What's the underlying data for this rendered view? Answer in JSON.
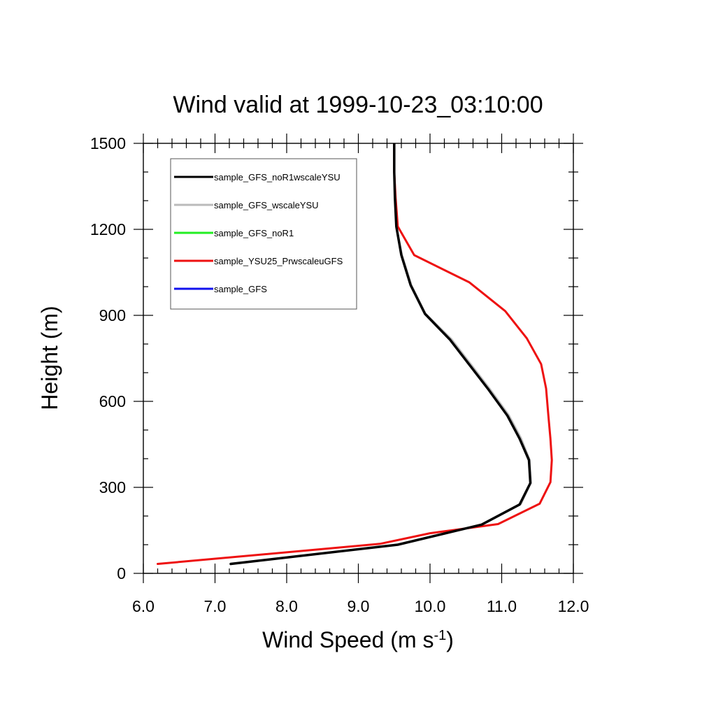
{
  "chart_data": {
    "type": "line",
    "title": "Wind valid at 1999-10-23_03:10:00",
    "xlabel": "Wind Speed (m s",
    "xlabel_superscript": "-1",
    "xlabel_suffix": ")",
    "ylabel": "Height (m)",
    "xlim": [
      6.0,
      12.0
    ],
    "ylim": [
      0,
      1500
    ],
    "x_ticks": [
      6.0,
      7.0,
      8.0,
      9.0,
      10.0,
      11.0,
      12.0
    ],
    "x_tick_labels": [
      "6.0",
      "7.0",
      "8.0",
      "9.0",
      "10.0",
      "11.0",
      "12.0"
    ],
    "y_ticks": [
      0,
      300,
      600,
      900,
      1200,
      1500
    ],
    "y_tick_labels": [
      "0",
      "300",
      "600",
      "900",
      "1200",
      "1500"
    ],
    "grid": false,
    "legend_position": "top-left",
    "series": [
      {
        "name": "sample_GFS_noR1wscaleYSU",
        "color": "#000000",
        "width": 3.5,
        "points": [
          [
            7.22,
            33
          ],
          [
            9.55,
            100
          ],
          [
            10.72,
            170
          ],
          [
            11.25,
            240
          ],
          [
            11.4,
            315
          ],
          [
            11.38,
            395
          ],
          [
            11.25,
            470
          ],
          [
            11.08,
            550
          ],
          [
            10.82,
            640
          ],
          [
            10.28,
            815
          ],
          [
            9.93,
            905
          ],
          [
            9.73,
            1005
          ],
          [
            9.6,
            1110
          ],
          [
            9.53,
            1210
          ],
          [
            9.51,
            1310
          ],
          [
            9.5,
            1400
          ],
          [
            9.5,
            1500
          ]
        ]
      },
      {
        "name": "sample_GFS_wscaleYSU",
        "color": "#bbbbbb",
        "width": 2.5,
        "points": [
          [
            7.22,
            33
          ],
          [
            9.55,
            100
          ],
          [
            10.74,
            172
          ],
          [
            11.27,
            242
          ],
          [
            11.41,
            317
          ],
          [
            11.39,
            397
          ],
          [
            11.27,
            472
          ],
          [
            11.1,
            552
          ],
          [
            10.84,
            642
          ],
          [
            10.3,
            817
          ],
          [
            9.94,
            906
          ],
          [
            9.74,
            1006
          ],
          [
            9.61,
            1111
          ],
          [
            9.53,
            1210
          ],
          [
            9.51,
            1310
          ],
          [
            9.5,
            1400
          ],
          [
            9.5,
            1500
          ]
        ]
      },
      {
        "name": "sample_GFS_noR1",
        "color": "#22ee22",
        "width": 2.5,
        "points": [
          [
            7.22,
            33
          ],
          [
            9.55,
            100
          ],
          [
            10.73,
            171
          ],
          [
            11.26,
            241
          ],
          [
            11.4,
            316
          ],
          [
            11.38,
            396
          ],
          [
            11.26,
            471
          ],
          [
            11.09,
            551
          ],
          [
            10.83,
            641
          ],
          [
            10.29,
            816
          ],
          [
            9.93,
            905
          ],
          [
            9.73,
            1005
          ],
          [
            9.6,
            1110
          ],
          [
            9.53,
            1210
          ],
          [
            9.51,
            1310
          ],
          [
            9.5,
            1400
          ],
          [
            9.5,
            1500
          ]
        ]
      },
      {
        "name": "sample_YSU25_PrwscaleuGFS",
        "color": "#ee1111",
        "width": 3,
        "points": [
          [
            6.2,
            33
          ],
          [
            9.3,
            103
          ],
          [
            10.0,
            140
          ],
          [
            10.3,
            150
          ],
          [
            10.95,
            172
          ],
          [
            11.53,
            243
          ],
          [
            11.68,
            318
          ],
          [
            11.7,
            395
          ],
          [
            11.68,
            470
          ],
          [
            11.65,
            555
          ],
          [
            11.62,
            645
          ],
          [
            11.55,
            730
          ],
          [
            11.35,
            820
          ],
          [
            11.05,
            915
          ],
          [
            10.55,
            1015
          ],
          [
            9.78,
            1110
          ],
          [
            9.55,
            1210
          ],
          [
            9.52,
            1310
          ],
          [
            9.5,
            1400
          ],
          [
            9.5,
            1500
          ]
        ]
      },
      {
        "name": "sample_GFS",
        "color": "#1111ee",
        "width": 2,
        "points": [
          [
            7.22,
            33
          ],
          [
            9.55,
            100
          ],
          [
            10.73,
            171
          ],
          [
            11.26,
            241
          ],
          [
            11.41,
            316
          ],
          [
            11.39,
            396
          ],
          [
            11.26,
            471
          ],
          [
            11.09,
            551
          ],
          [
            10.83,
            641
          ],
          [
            10.29,
            816
          ],
          [
            9.94,
            905
          ],
          [
            9.74,
            1005
          ],
          [
            9.6,
            1110
          ],
          [
            9.53,
            1210
          ],
          [
            9.51,
            1310
          ],
          [
            9.5,
            1400
          ],
          [
            9.5,
            1500
          ]
        ]
      }
    ],
    "draw_order": [
      4,
      3,
      2,
      1,
      0
    ]
  }
}
